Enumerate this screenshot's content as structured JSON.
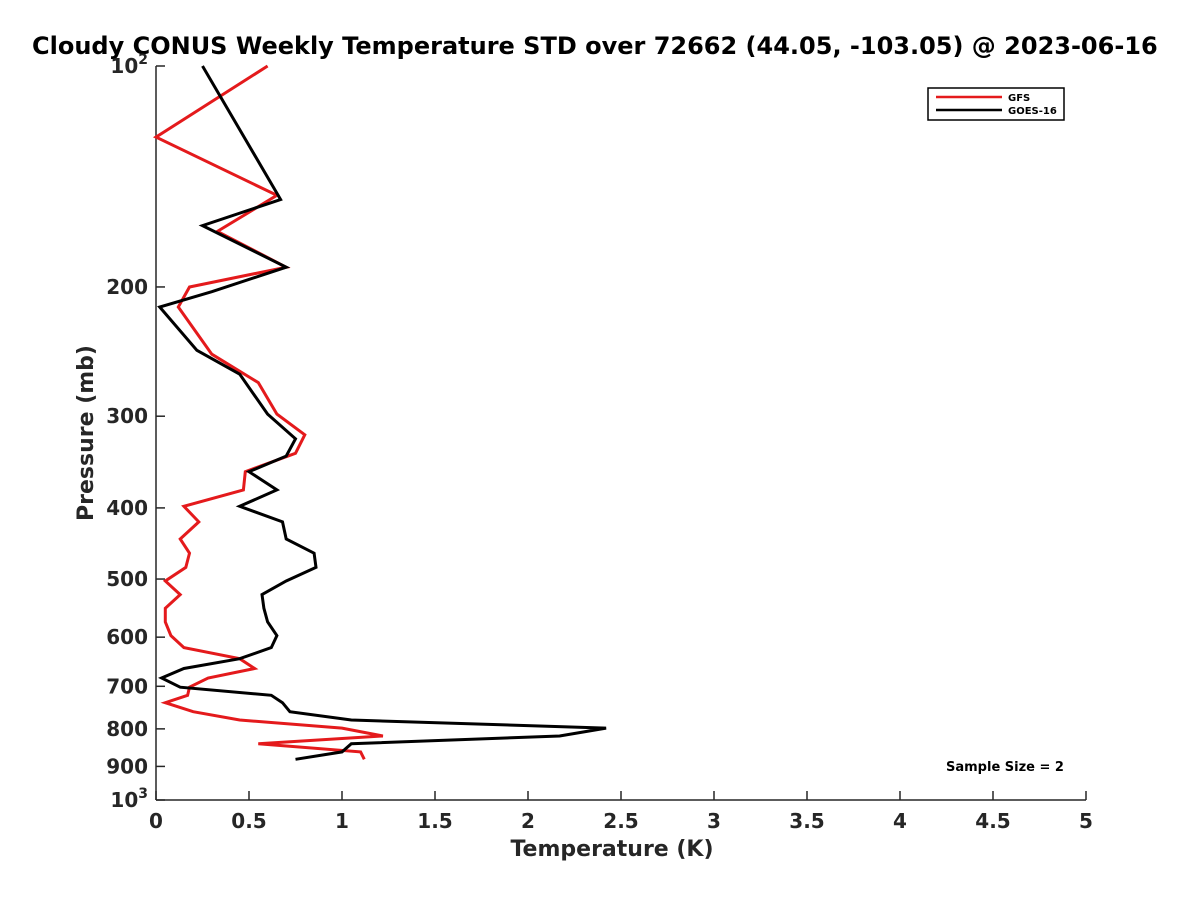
{
  "chart_data": {
    "type": "line",
    "title": "Cloudy CONUS Weekly Temperature STD over 72662 (44.05, -103.05) @ 2023-06-16",
    "xlabel": "Temperature (K)",
    "ylabel": "Pressure (mb)",
    "xlim": [
      0,
      5
    ],
    "ylim": [
      100,
      1000
    ],
    "yscale": "log",
    "yreversed": true,
    "grid": false,
    "legend_position": "top-right",
    "x_ticks": [
      0,
      0.5,
      1,
      1.5,
      2,
      2.5,
      3,
      3.5,
      4,
      4.5,
      5
    ],
    "x_tick_labels": [
      "0",
      "0.5",
      "1",
      "1.5",
      "2",
      "2.5",
      "3",
      "3.5",
      "4",
      "4.5",
      "5"
    ],
    "y_ticks": [
      {
        "value": 100,
        "base": "10",
        "exp": "2"
      },
      {
        "value": 200,
        "label": "200"
      },
      {
        "value": 300,
        "label": "300"
      },
      {
        "value": 400,
        "label": "400"
      },
      {
        "value": 500,
        "label": "500"
      },
      {
        "value": 600,
        "label": "600"
      },
      {
        "value": 700,
        "label": "700"
      },
      {
        "value": 800,
        "label": "800"
      },
      {
        "value": 900,
        "label": "900"
      },
      {
        "value": 1000,
        "base": "10",
        "exp": "3"
      }
    ],
    "series": [
      {
        "name": "GFS",
        "color": "#e41a1c",
        "points": [
          [
            0.6,
            100
          ],
          [
            0.0,
            125
          ],
          [
            0.65,
            150
          ],
          [
            0.33,
            168
          ],
          [
            0.7,
            188
          ],
          [
            0.18,
            200
          ],
          [
            0.12,
            213
          ],
          [
            0.3,
            247
          ],
          [
            0.55,
            270
          ],
          [
            0.65,
            298
          ],
          [
            0.8,
            318
          ],
          [
            0.75,
            337
          ],
          [
            0.48,
            357
          ],
          [
            0.47,
            378
          ],
          [
            0.15,
            398
          ],
          [
            0.23,
            418
          ],
          [
            0.13,
            441
          ],
          [
            0.18,
            461
          ],
          [
            0.16,
            482
          ],
          [
            0.05,
            503
          ],
          [
            0.13,
            525
          ],
          [
            0.05,
            548
          ],
          [
            0.05,
            572
          ],
          [
            0.08,
            597
          ],
          [
            0.15,
            620
          ],
          [
            0.45,
            642
          ],
          [
            0.53,
            662
          ],
          [
            0.28,
            682
          ],
          [
            0.18,
            702
          ],
          [
            0.17,
            720
          ],
          [
            0.05,
            737
          ],
          [
            0.2,
            758
          ],
          [
            0.45,
            778
          ],
          [
            1.0,
            798
          ],
          [
            1.22,
            818
          ],
          [
            0.55,
            838
          ],
          [
            1.1,
            860
          ],
          [
            1.12,
            880
          ]
        ]
      },
      {
        "name": "GOES-16",
        "color": "#000000",
        "points": [
          [
            0.25,
            100
          ],
          [
            0.67,
            152
          ],
          [
            0.25,
            165
          ],
          [
            0.7,
            188
          ],
          [
            0.3,
            203
          ],
          [
            0.02,
            213
          ],
          [
            0.22,
            244
          ],
          [
            0.45,
            263
          ],
          [
            0.6,
            298
          ],
          [
            0.75,
            322
          ],
          [
            0.7,
            340
          ],
          [
            0.5,
            357
          ],
          [
            0.65,
            378
          ],
          [
            0.45,
            398
          ],
          [
            0.68,
            418
          ],
          [
            0.7,
            441
          ],
          [
            0.85,
            461
          ],
          [
            0.86,
            482
          ],
          [
            0.7,
            503
          ],
          [
            0.57,
            525
          ],
          [
            0.58,
            548
          ],
          [
            0.6,
            572
          ],
          [
            0.65,
            597
          ],
          [
            0.62,
            620
          ],
          [
            0.45,
            642
          ],
          [
            0.15,
            662
          ],
          [
            0.03,
            682
          ],
          [
            0.13,
            702
          ],
          [
            0.62,
            720
          ],
          [
            0.68,
            737
          ],
          [
            0.72,
            758
          ],
          [
            1.05,
            778
          ],
          [
            2.42,
            798
          ],
          [
            2.17,
            818
          ],
          [
            1.05,
            838
          ],
          [
            1.0,
            860
          ],
          [
            0.75,
            880
          ]
        ]
      }
    ],
    "annotations": [
      {
        "text": "Sample Size = 2",
        "position": "bottom-right"
      }
    ]
  }
}
